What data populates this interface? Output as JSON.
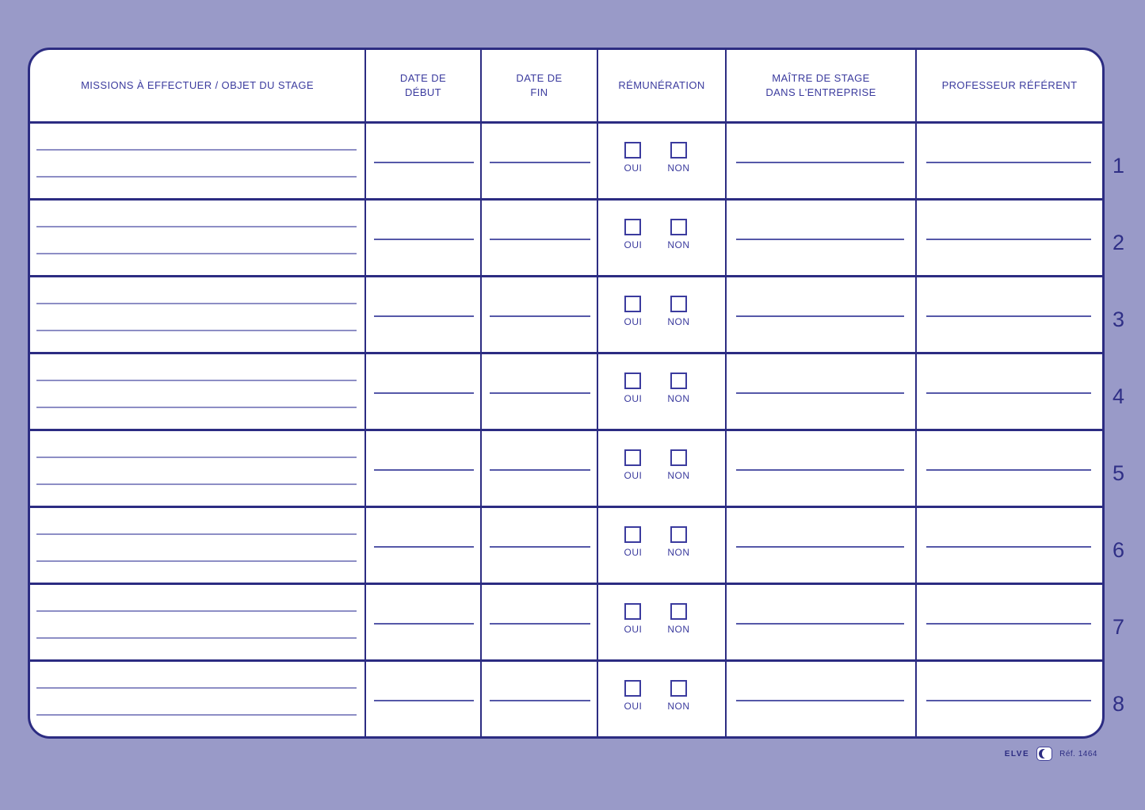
{
  "table": {
    "headers": {
      "missions": "MISSIONS À EFFECTUER / OBJET DU STAGE",
      "date_debut": "DATE DE\nDÉBUT",
      "date_fin": "DATE DE\nFIN",
      "remuneration": "RÉMUNÉRATION",
      "maitre": "MAÎTRE DE STAGE\nDANS L'ENTREPRISE",
      "professeur": "PROFESSEUR RÉFÉRENT"
    },
    "checkbox_labels": {
      "oui": "OUI",
      "non": "NON"
    },
    "rows": [
      {
        "number": "1"
      },
      {
        "number": "2"
      },
      {
        "number": "3"
      },
      {
        "number": "4"
      },
      {
        "number": "5"
      },
      {
        "number": "6"
      },
      {
        "number": "7"
      },
      {
        "number": "8"
      }
    ]
  },
  "footer": {
    "brand": "ELVE",
    "logo_icon": "crescent-moon-logo",
    "ref": "Réf. 1464"
  },
  "colors": {
    "page_background": "#999ac8",
    "grid_ink": "#2c2c82",
    "header_text": "#3b3b9e",
    "missions_line": "#8d8ec5",
    "field_line": "#5558a8",
    "row_number": "#2f2f86"
  }
}
